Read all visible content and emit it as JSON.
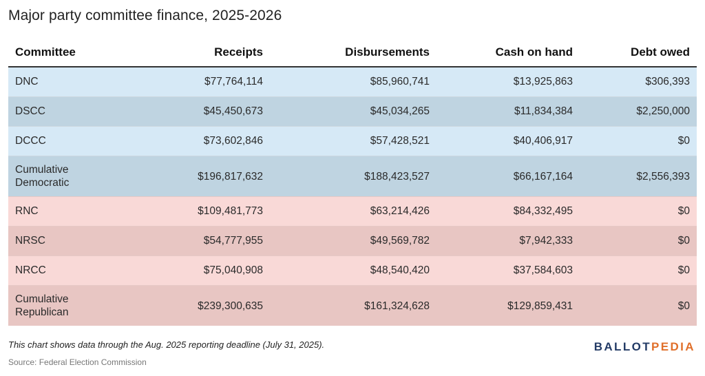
{
  "title": "Major party committee finance, 2025-2026",
  "chart_data": {
    "type": "table",
    "columns": [
      "Committee",
      "Receipts",
      "Disbursements",
      "Cash on hand",
      "Debt owed"
    ],
    "rows": [
      {
        "committee": [
          "DNC"
        ],
        "receipts": "$77,764,114",
        "disbursements": "$85,960,741",
        "cash": "$13,925,863",
        "debt": "$306,393"
      },
      {
        "committee": [
          "DSCC"
        ],
        "receipts": "$45,450,673",
        "disbursements": "$45,034,265",
        "cash": "$11,834,384",
        "debt": "$2,250,000"
      },
      {
        "committee": [
          "DCCC"
        ],
        "receipts": "$73,602,846",
        "disbursements": "$57,428,521",
        "cash": "$40,406,917",
        "debt": "$0"
      },
      {
        "committee": [
          "Cumulative",
          "Democratic"
        ],
        "receipts": "$196,817,632",
        "disbursements": "$188,423,527",
        "cash": "$66,167,164",
        "debt": "$2,556,393"
      },
      {
        "committee": [
          "RNC"
        ],
        "receipts": "$109,481,773",
        "disbursements": "$63,214,426",
        "cash": "$84,332,495",
        "debt": "$0"
      },
      {
        "committee": [
          "NRSC"
        ],
        "receipts": "$54,777,955",
        "disbursements": "$49,569,782",
        "cash": "$7,942,333",
        "debt": "$0"
      },
      {
        "committee": [
          "NRCC"
        ],
        "receipts": "$75,040,908",
        "disbursements": "$48,540,420",
        "cash": "$37,584,603",
        "debt": "$0"
      },
      {
        "committee": [
          "Cumulative",
          "Republican"
        ],
        "receipts": "$239,300,635",
        "disbursements": "$161,324,628",
        "cash": "$129,859,431",
        "debt": "$0"
      }
    ]
  },
  "colors": {
    "democratic_light": "#d6e9f6",
    "democratic_dark": "#bfd4e1",
    "republican_light": "#f9d9d7",
    "republican_dark": "#e8c6c3",
    "logo_blue": "#233b66",
    "logo_orange": "#e06f2a"
  },
  "footnote": "This chart shows data through the Aug. 2025 reporting deadline (July 31, 2025).",
  "source": "Source: Federal Election Commission",
  "logo": {
    "part1": "BALLOT",
    "part2": "PEDIA"
  }
}
